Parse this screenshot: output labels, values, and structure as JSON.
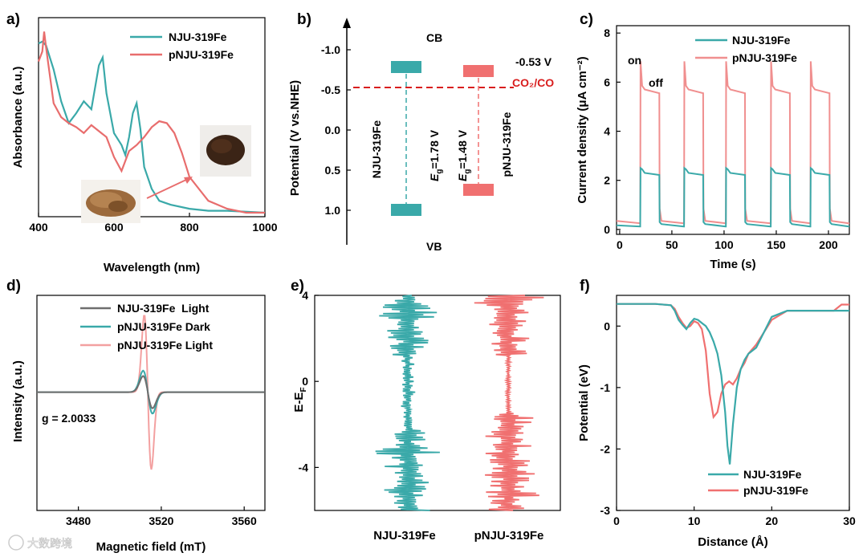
{
  "watermark": "大数跨境",
  "colors": {
    "teal": "#3aa9a9",
    "pink": "#e86d6d",
    "lightpink": "#f3a0a0",
    "gray": "#6e6e6e",
    "red_dash": "#d91e1e"
  },
  "chart_data": [
    {
      "panel": "a)",
      "type": "line",
      "xlabel": "Wavelength (nm)",
      "ylabel": "Absorbance (a.u.)",
      "xlim": [
        400,
        1000
      ],
      "xticks": [
        "400",
        "600",
        "800",
        "1000"
      ],
      "series": [
        {
          "name": "NJU-319Fe",
          "color": "#3aa9a9",
          "x": [
            400,
            410,
            420,
            440,
            460,
            480,
            500,
            520,
            540,
            560,
            570,
            580,
            600,
            620,
            630,
            640,
            650,
            660,
            670,
            680,
            700,
            720,
            750,
            800,
            850,
            900,
            1000
          ],
          "y": [
            0.87,
            0.88,
            0.86,
            0.74,
            0.58,
            0.47,
            0.52,
            0.58,
            0.54,
            0.76,
            0.8,
            0.62,
            0.42,
            0.36,
            0.31,
            0.4,
            0.52,
            0.57,
            0.44,
            0.25,
            0.14,
            0.08,
            0.06,
            0.04,
            0.03,
            0.03,
            0.02
          ]
        },
        {
          "name": "pNJU-319Fe",
          "color": "#e86d6d",
          "x": [
            400,
            410,
            415,
            420,
            440,
            460,
            480,
            500,
            520,
            540,
            560,
            580,
            600,
            620,
            640,
            660,
            680,
            700,
            720,
            740,
            760,
            780,
            800,
            850,
            900,
            950,
            1000
          ],
          "y": [
            0.78,
            0.83,
            0.93,
            0.85,
            0.57,
            0.5,
            0.47,
            0.45,
            0.42,
            0.46,
            0.43,
            0.4,
            0.3,
            0.23,
            0.33,
            0.36,
            0.4,
            0.45,
            0.48,
            0.47,
            0.42,
            0.32,
            0.2,
            0.08,
            0.04,
            0.02,
            0.02
          ]
        }
      ]
    },
    {
      "panel": "b)",
      "type": "band diagram",
      "ylabel": "Potential (V vs.NHE)",
      "yticks": [
        "-1.0",
        "-0.5",
        "0.0",
        "0.5",
        "1.0"
      ],
      "yrange": [
        -1.3,
        1.3
      ],
      "reference": {
        "label": "CO₂/CO",
        "value": -0.53,
        "value_label": "-0.53 V"
      },
      "cb_label": "CB",
      "vb_label": "VB",
      "materials": [
        {
          "name": "NJU-319Fe",
          "CB": -0.78,
          "VB": 1.0,
          "gap_label": "=1.78 V",
          "color": "#3aa9a9"
        },
        {
          "name": "pNJU-319Fe",
          "CB": -0.73,
          "VB": 0.75,
          "gap_label": "=1.48 V",
          "color": "#f07070"
        }
      ],
      "eg_symbol": "E",
      "eg_sub": "g"
    },
    {
      "panel": "c)",
      "type": "line",
      "xlabel": "Time (s)",
      "ylabel": "Current density (μA cm⁻²)",
      "xlim": [
        0,
        220
      ],
      "ylim": [
        0,
        8
      ],
      "xticks": [
        "0",
        "50",
        "100",
        "150",
        "200"
      ],
      "yticks": [
        "0",
        "2",
        "4",
        "6",
        "8"
      ],
      "annotations": [
        "on",
        "off"
      ],
      "on_intervals": [
        [
          20,
          38
        ],
        [
          62,
          80
        ],
        [
          102,
          120
        ],
        [
          145,
          163
        ],
        [
          183,
          201
        ]
      ],
      "series": [
        {
          "name": "NJU-319Fe",
          "color": "#3aa9a9",
          "on_level": 2.25,
          "off_level": 0.12
        },
        {
          "name": "pNJU-319Fe",
          "color": "#f08f8f",
          "on_level": 5.65,
          "off_level": 0.25
        }
      ]
    },
    {
      "panel": "d)",
      "type": "line",
      "xlabel": "Magnetic field (mT)",
      "ylabel": "Intensity (a.u.)",
      "xlim": [
        3460,
        3570
      ],
      "xticks": [
        "3480",
        "3520",
        "3560"
      ],
      "annotation": "g = 2.0033",
      "series": [
        {
          "name": "NJU-319Fe  Light",
          "color": "#6e6e6e",
          "amplitude": 0.15
        },
        {
          "name": "pNJU-319Fe Dark",
          "color": "#3aa9a9",
          "amplitude": 0.2
        },
        {
          "name": "pNJU-319Fe Light",
          "color": "#f3a0a0",
          "amplitude": 0.72
        }
      ]
    },
    {
      "panel": "e)",
      "type": "density of states",
      "ylabel": "E-E",
      "ylabel_sub": "F",
      "yticks": [
        "4",
        "0",
        "-4"
      ],
      "ylim": [
        -6,
        4
      ],
      "series": [
        {
          "name": "NJU-319Fe",
          "color": "#3aa9a9"
        },
        {
          "name": "pNJU-319Fe",
          "color": "#f07070"
        }
      ]
    },
    {
      "panel": "f)",
      "type": "line",
      "xlabel": "Distance (Å)",
      "ylabel": "Potential (eV)",
      "xlim": [
        0,
        30
      ],
      "ylim": [
        -3,
        0.5
      ],
      "xticks": [
        "0",
        "10",
        "20",
        "30"
      ],
      "yticks": [
        "0",
        "-1",
        "-2",
        "-3"
      ],
      "series": [
        {
          "name": "NJU-319Fe",
          "color": "#3aa9a9",
          "x": [
            0,
            5,
            7,
            7.5,
            8,
            8.5,
            9,
            9.5,
            10,
            10.5,
            11,
            11.5,
            12,
            12.5,
            13,
            13.5,
            14,
            14.3,
            14.6,
            15,
            15.5,
            16,
            16.5,
            17,
            18,
            19,
            20,
            22,
            25,
            28,
            30
          ],
          "y": [
            0.36,
            0.36,
            0.34,
            0.25,
            0.1,
            0.02,
            -0.05,
            0.05,
            0.12,
            0.1,
            0.05,
            0.0,
            -0.1,
            -0.25,
            -0.45,
            -0.8,
            -1.4,
            -1.95,
            -2.25,
            -1.6,
            -1.0,
            -0.7,
            -0.55,
            -0.45,
            -0.35,
            -0.1,
            0.15,
            0.25,
            0.25,
            0.25,
            0.25
          ]
        },
        {
          "name": "pNJU-319Fe",
          "color": "#f07070",
          "x": [
            0,
            5,
            7,
            7.5,
            8,
            8.5,
            9,
            9.5,
            10,
            10.5,
            11,
            11.5,
            12,
            12.5,
            13,
            13.5,
            14,
            14.5,
            15,
            15.5,
            16,
            16.5,
            17,
            18,
            19,
            20,
            22,
            25,
            28,
            29,
            30
          ],
          "y": [
            0.36,
            0.36,
            0.34,
            0.28,
            0.15,
            0.05,
            -0.03,
            0.0,
            0.08,
            0.05,
            -0.05,
            -0.4,
            -1.1,
            -1.48,
            -1.4,
            -1.1,
            -0.95,
            -0.9,
            -0.95,
            -0.85,
            -0.7,
            -0.6,
            -0.45,
            -0.3,
            -0.1,
            0.1,
            0.25,
            0.25,
            0.25,
            0.35,
            0.35
          ]
        }
      ]
    }
  ]
}
